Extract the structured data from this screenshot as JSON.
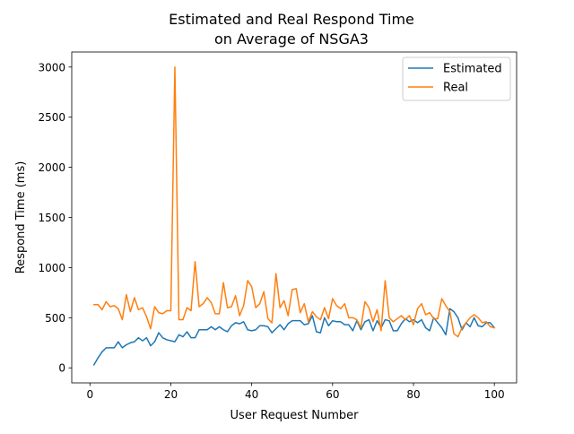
{
  "chart_data": {
    "type": "line",
    "title_line1": "Estimated and Real Respond Time",
    "title_line2": "on Average of NSGA3",
    "xlabel": "User Request Number",
    "ylabel": "Respond Time (ms)",
    "xlim": [
      -4.5,
      105.5
    ],
    "ylim": [
      -150,
      3150
    ],
    "xticks": [
      0,
      20,
      40,
      60,
      80,
      100
    ],
    "yticks": [
      0,
      500,
      1000,
      1500,
      2000,
      2500,
      3000
    ],
    "grid": false,
    "legend_position": "upper right",
    "x": [
      1,
      2,
      3,
      4,
      5,
      6,
      7,
      8,
      9,
      10,
      11,
      12,
      13,
      14,
      15,
      16,
      17,
      18,
      19,
      20,
      21,
      22,
      23,
      24,
      25,
      26,
      27,
      28,
      29,
      30,
      31,
      32,
      33,
      34,
      35,
      36,
      37,
      38,
      39,
      40,
      41,
      42,
      43,
      44,
      45,
      46,
      47,
      48,
      49,
      50,
      51,
      52,
      53,
      54,
      55,
      56,
      57,
      58,
      59,
      60,
      61,
      62,
      63,
      64,
      65,
      66,
      67,
      68,
      69,
      70,
      71,
      72,
      73,
      74,
      75,
      76,
      77,
      78,
      79,
      80,
      81,
      82,
      83,
      84,
      85,
      86,
      87,
      88,
      89,
      90,
      91,
      92,
      93,
      94,
      95,
      96,
      97,
      98,
      99,
      100
    ],
    "series": [
      {
        "name": "Estimated",
        "color": "#1f77b4",
        "values": [
          30,
          100,
          160,
          200,
          200,
          200,
          260,
          200,
          230,
          250,
          260,
          300,
          270,
          300,
          220,
          260,
          350,
          300,
          280,
          270,
          260,
          330,
          310,
          360,
          300,
          300,
          380,
          380,
          380,
          410,
          380,
          410,
          380,
          360,
          420,
          450,
          440,
          460,
          380,
          370,
          380,
          420,
          420,
          410,
          350,
          390,
          430,
          380,
          440,
          470,
          470,
          470,
          430,
          440,
          520,
          360,
          350,
          500,
          420,
          470,
          460,
          460,
          430,
          430,
          370,
          470,
          380,
          460,
          480,
          370,
          470,
          400,
          480,
          470,
          370,
          370,
          440,
          490,
          460,
          480,
          450,
          480,
          400,
          370,
          500,
          450,
          400,
          330,
          590,
          560,
          500,
          380,
          450,
          410,
          500,
          420,
          410,
          450,
          450,
          400
        ]
      },
      {
        "name": "Real",
        "color": "#ff7f0e",
        "values": [
          630,
          630,
          580,
          660,
          610,
          620,
          590,
          480,
          730,
          560,
          700,
          580,
          600,
          510,
          390,
          610,
          550,
          540,
          570,
          570,
          3000,
          480,
          480,
          600,
          570,
          1060,
          610,
          640,
          700,
          650,
          540,
          540,
          850,
          600,
          610,
          720,
          520,
          620,
          870,
          810,
          600,
          640,
          760,
          490,
          450,
          940,
          600,
          670,
          520,
          780,
          790,
          550,
          640,
          460,
          560,
          510,
          480,
          600,
          490,
          690,
          620,
          590,
          640,
          500,
          500,
          480,
          400,
          660,
          600,
          460,
          580,
          370,
          870,
          500,
          460,
          490,
          520,
          480,
          520,
          430,
          590,
          640,
          530,
          550,
          490,
          490,
          690,
          620,
          560,
          340,
          310,
          400,
          450,
          500,
          530,
          500,
          450,
          460,
          410,
          400
        ]
      }
    ]
  }
}
